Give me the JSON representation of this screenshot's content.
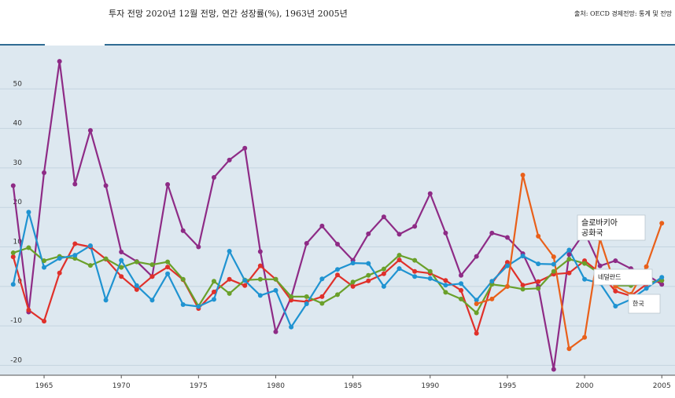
{
  "header": {
    "title": "투자 전망 2020년 12월 전망, 연간 성장률(%), 1963년 2005년",
    "source": "출처: OECD 경제전망: 통계 및 전망"
  },
  "colors": {
    "background": "#dde8f0",
    "grid": "#c4d4df",
    "header_rule": "#2f6b93"
  },
  "chart_data": {
    "type": "line",
    "title": "투자 전망 2020년 12월 전망, 연간 성장률(%), 1963년 2005년",
    "xlabel": "",
    "ylabel": "",
    "xlim": [
      1962.4,
      2005.6
    ],
    "ylim": [
      -22.5,
      60
    ],
    "x_ticks": [
      1965,
      1970,
      1975,
      1980,
      1985,
      1990,
      1995,
      2000,
      2005
    ],
    "y_ticks": [
      -20,
      -10,
      0,
      10,
      20,
      30,
      40,
      50
    ],
    "grid": true,
    "x": [
      1963,
      1964,
      1965,
      1966,
      1967,
      1968,
      1969,
      1970,
      1971,
      1972,
      1973,
      1974,
      1975,
      1976,
      1977,
      1978,
      1979,
      1980,
      1981,
      1982,
      1983,
      1984,
      1985,
      1986,
      1987,
      1988,
      1989,
      1990,
      1991,
      1992,
      1993,
      1994,
      1995,
      1996,
      1997,
      1998,
      1999,
      2000,
      2001,
      2002,
      2003,
      2004,
      2005
    ],
    "series": [
      {
        "color": "#8e2b86",
        "values": [
          25.5,
          -6.5,
          28.8,
          57,
          25.9,
          39.5,
          25.5,
          8.7,
          6.3,
          2.5,
          25.8,
          14.1,
          10,
          27.6,
          32,
          35,
          8.8,
          -11.5,
          -2.8,
          10.9,
          15.3,
          10.7,
          6.6,
          13.3,
          17.6,
          13.2,
          15.2,
          23.5,
          13.5,
          2.8,
          7.6,
          13.5,
          12.4,
          8.3,
          0,
          -21,
          8.1,
          13.7,
          5.2,
          6.5,
          4.5,
          3,
          0.5
        ]
      },
      {
        "color": "#e0302a",
        "values": [
          7.5,
          -6,
          -8.8,
          3.4,
          10.8,
          10,
          6.9,
          2.5,
          -0.8,
          2.5,
          4.9,
          1.7,
          -5.6,
          -1.4,
          1.8,
          0.2,
          5.2,
          1.8,
          -3.5,
          -3.9,
          -2.6,
          2.9,
          0,
          1.4,
          3.2,
          6.7,
          3.8,
          3.3,
          1.5,
          -1,
          -11.9,
          0.8,
          6.1,
          0.3,
          1.2,
          3.1,
          3.4,
          6.5,
          3.4,
          -1.2,
          -2.4,
          0.5,
          1.5
        ]
      },
      {
        "color": "#6aa02a",
        "values": [
          8.5,
          9.8,
          6.5,
          7.6,
          7.1,
          5.3,
          7,
          4.8,
          6.2,
          5.5,
          6.2,
          1.8,
          -5,
          1.3,
          -1.8,
          1.6,
          1.8,
          1.8,
          -2.6,
          -2.6,
          -4.3,
          -2.1,
          1.1,
          2.8,
          4.4,
          7.9,
          6.6,
          3.8,
          -1.5,
          -3.2,
          -6.7,
          0.5,
          0,
          -0.7,
          -0.5,
          3.8,
          6.9,
          5.8,
          3.2,
          0.2,
          0.2,
          0.9,
          1.5
        ]
      },
      {
        "color": "#1f93d1",
        "values": [
          0.5,
          18.8,
          4.8,
          7.1,
          7.9,
          10.3,
          -3.5,
          6.6,
          0.2,
          -3.5,
          3.2,
          -4.6,
          -5.1,
          -3.3,
          8.9,
          1.5,
          -2.3,
          -1,
          -10.3,
          -4.4,
          1.9,
          4.3,
          5.9,
          5.8,
          0,
          4.5,
          2.5,
          2,
          0.3,
          0.7,
          -3.5,
          1.3,
          5.2,
          7.7,
          5.7,
          5.6,
          9.2,
          1.8,
          0.8,
          -5,
          -3.3,
          -0.5,
          2.3
        ]
      },
      {
        "color": "#e9601a",
        "values": [
          null,
          null,
          null,
          null,
          null,
          null,
          null,
          null,
          null,
          null,
          null,
          null,
          null,
          null,
          null,
          null,
          null,
          null,
          null,
          null,
          null,
          null,
          null,
          null,
          null,
          null,
          null,
          null,
          null,
          null,
          -4.4,
          -3.2,
          0,
          28.2,
          12.7,
          7.5,
          -15.8,
          -12.9,
          12,
          0,
          -2,
          5,
          16
        ]
      }
    ],
    "labels": [
      {
        "series": 4,
        "lines": [
          "슬로바키아",
          "공화국"
        ]
      },
      {
        "series": 2,
        "lines": [
          "네덜란드"
        ]
      },
      {
        "series": 1,
        "lines": [
          "한국"
        ]
      }
    ]
  }
}
